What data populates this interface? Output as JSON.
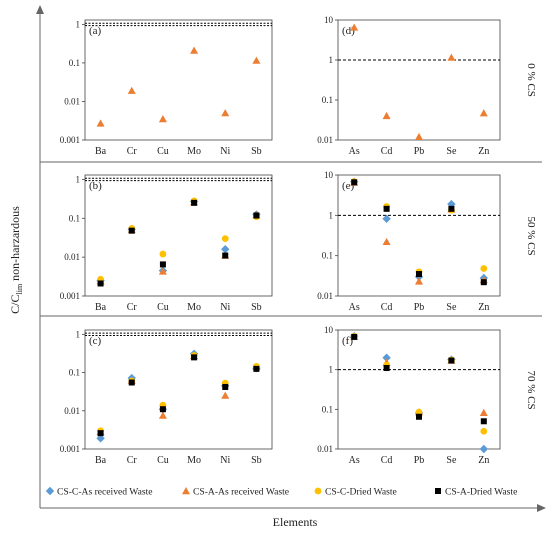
{
  "figure": {
    "y_axis_label": "C/C",
    "y_axis_label_sub": "lim",
    "y_axis_label_rest": " non-harzardous",
    "x_axis_label": "Elements",
    "row_labels": [
      "0 % CS",
      "50 % CS",
      "70 % CS"
    ]
  },
  "legend": [
    {
      "name": "CS-C-As received Waste",
      "marker": "diamond",
      "color": "#5b9bd5"
    },
    {
      "name": "CS-A-As received Waste",
      "marker": "triangle",
      "color": "#ed7d31"
    },
    {
      "name": "CS-C-Dried Waste",
      "marker": "circle",
      "color": "#ffc000"
    },
    {
      "name": "CS-A-Dried Waste",
      "marker": "square",
      "color": "#000000"
    }
  ],
  "chart_data": [
    {
      "panel": "(a)",
      "type": "scatter",
      "scale": "log",
      "ylim": [
        0.001,
        1.3
      ],
      "yticks": [
        {
          "v": 0.001,
          "t": "0.001"
        },
        {
          "v": 0.01,
          "t": "0.01"
        },
        {
          "v": 0.1,
          "t": "0.1"
        },
        {
          "v": 1,
          "t": "1"
        }
      ],
      "categories": [
        "Ba",
        "Cr",
        "Cu",
        "Mo",
        "Ni",
        "Sb"
      ],
      "threshold": 1,
      "series": [
        {
          "name": "CS-A-As received Waste",
          "values": [
            0.0027,
            0.019,
            0.0035,
            0.21,
            0.005,
            0.115
          ]
        }
      ]
    },
    {
      "panel": "(d)",
      "type": "scatter",
      "scale": "log",
      "ylim": [
        0.01,
        10
      ],
      "yticks": [
        {
          "v": 0.01,
          "t": "0.01"
        },
        {
          "v": 0.1,
          "t": "0.1"
        },
        {
          "v": 1,
          "t": "1"
        },
        {
          "v": 10,
          "t": "10"
        }
      ],
      "categories": [
        "As",
        "Cd",
        "Pb",
        "Se",
        "Zn"
      ],
      "threshold": 1,
      "series": [
        {
          "name": "CS-A-As received Waste",
          "values": [
            6.5,
            0.04,
            0.012,
            1.15,
            0.047
          ]
        }
      ]
    },
    {
      "panel": "(b)",
      "type": "scatter",
      "scale": "log",
      "ylim": [
        0.001,
        1.3
      ],
      "yticks": [
        {
          "v": 0.001,
          "t": "0.001"
        },
        {
          "v": 0.01,
          "t": "0.01"
        },
        {
          "v": 0.1,
          "t": "0.1"
        },
        {
          "v": 1,
          "t": "1"
        }
      ],
      "categories": [
        "Ba",
        "Cr",
        "Cu",
        "Mo",
        "Ni",
        "Sb"
      ],
      "threshold": 1,
      "series": [
        {
          "name": "CS-C-As received Waste",
          "values": [
            0.0025,
            0.052,
            0.0045,
            0.27,
            0.016,
            0.125
          ]
        },
        {
          "name": "CS-A-As received Waste",
          "values": [
            0.0024,
            0.05,
            0.0043,
            0.26,
            0.011,
            0.12
          ]
        },
        {
          "name": "CS-C-Dried Waste",
          "values": [
            0.0027,
            0.055,
            0.012,
            0.28,
            0.03,
            0.11
          ]
        },
        {
          "name": "CS-A-Dried Waste",
          "values": [
            0.0021,
            0.048,
            0.0065,
            0.25,
            0.011,
            0.118
          ]
        }
      ]
    },
    {
      "panel": "(e)",
      "type": "scatter",
      "scale": "log",
      "ylim": [
        0.01,
        10
      ],
      "yticks": [
        {
          "v": 0.01,
          "t": "0.01"
        },
        {
          "v": 0.1,
          "t": "0.1"
        },
        {
          "v": 1,
          "t": "1"
        },
        {
          "v": 10,
          "t": "10"
        }
      ],
      "categories": [
        "As",
        "Cd",
        "Pb",
        "Se",
        "Zn"
      ],
      "threshold": 1,
      "series": [
        {
          "name": "CS-C-As received Waste",
          "values": [
            6.8,
            0.82,
            0.03,
            1.9,
            0.028
          ]
        },
        {
          "name": "CS-A-As received Waste",
          "values": [
            6.5,
            0.22,
            0.023,
            1.4,
            0.025
          ]
        },
        {
          "name": "CS-C-Dried Waste",
          "values": [
            6.9,
            1.65,
            0.04,
            1.35,
            0.048
          ]
        },
        {
          "name": "CS-A-Dried Waste",
          "values": [
            6.6,
            1.45,
            0.035,
            1.45,
            0.022
          ]
        }
      ]
    },
    {
      "panel": "(c)",
      "type": "scatter",
      "scale": "log",
      "ylim": [
        0.001,
        1.3
      ],
      "yticks": [
        {
          "v": 0.001,
          "t": "0.001"
        },
        {
          "v": 0.01,
          "t": "0.01"
        },
        {
          "v": 0.1,
          "t": "0.1"
        },
        {
          "v": 1,
          "t": "1"
        }
      ],
      "categories": [
        "Ba",
        "Cr",
        "Cu",
        "Mo",
        "Ni",
        "Sb"
      ],
      "threshold": 1,
      "series": [
        {
          "name": "CS-C-As received Waste",
          "values": [
            0.0019,
            0.072,
            0.011,
            0.31,
            0.045,
            0.13
          ]
        },
        {
          "name": "CS-A-As received Waste",
          "values": [
            0.0028,
            0.062,
            0.0075,
            0.27,
            0.025,
            0.14
          ]
        },
        {
          "name": "CS-C-Dried Waste",
          "values": [
            0.003,
            0.06,
            0.014,
            0.28,
            0.053,
            0.145
          ]
        },
        {
          "name": "CS-A-Dried Waste",
          "values": [
            0.0026,
            0.055,
            0.011,
            0.25,
            0.042,
            0.125
          ]
        }
      ]
    },
    {
      "panel": "(f)",
      "type": "scatter",
      "scale": "log",
      "ylim": [
        0.01,
        10
      ],
      "yticks": [
        {
          "v": 0.01,
          "t": "0.01"
        },
        {
          "v": 0.1,
          "t": "0.1"
        },
        {
          "v": 1,
          "t": "1"
        },
        {
          "v": 10,
          "t": "10"
        }
      ],
      "categories": [
        "As",
        "Cd",
        "Pb",
        "Se",
        "Zn"
      ],
      "threshold": 1,
      "series": [
        {
          "name": "CS-C-As received Waste",
          "values": [
            7.0,
            2.0,
            0.08,
            1.8,
            0.01
          ]
        },
        {
          "name": "CS-A-As received Waste",
          "values": [
            6.8,
            1.5,
            0.085,
            1.7,
            0.082
          ]
        },
        {
          "name": "CS-C-Dried Waste",
          "values": [
            6.9,
            1.3,
            0.085,
            1.75,
            0.028
          ]
        },
        {
          "name": "CS-A-Dried Waste",
          "values": [
            6.7,
            1.1,
            0.065,
            1.7,
            0.05
          ]
        }
      ]
    }
  ]
}
